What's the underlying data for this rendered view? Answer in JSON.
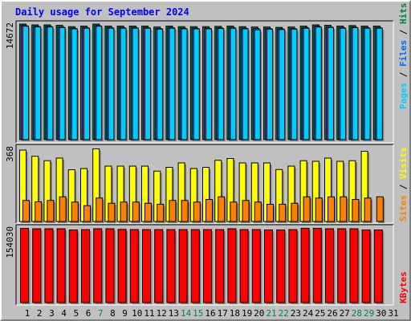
{
  "title": "Daily usage for September 2024",
  "right_labels": {
    "top": [
      {
        "text": "Pages",
        "color": "#00ccff"
      },
      {
        "text": " / ",
        "color": "#000000"
      },
      {
        "text": "Files",
        "color": "#0066ff"
      },
      {
        "text": " / ",
        "color": "#000000"
      },
      {
        "text": "Hits",
        "color": "#008040"
      }
    ],
    "middle": [
      {
        "text": "Sites",
        "color": "#ff8000"
      },
      {
        "text": " / ",
        "color": "#000000"
      },
      {
        "text": "Visits",
        "color": "#ffff00"
      }
    ],
    "bottom": [
      {
        "text": "KBytes",
        "color": "#ff0000"
      }
    ]
  },
  "chart_data": [
    {
      "type": "bar",
      "panel": "hits-files-pages",
      "categories": [
        "1",
        "2",
        "3",
        "4",
        "5",
        "6",
        "7",
        "8",
        "9",
        "10",
        "11",
        "12",
        "13",
        "14",
        "15",
        "16",
        "17",
        "18",
        "19",
        "20",
        "21",
        "22",
        "23",
        "24",
        "25",
        "26",
        "27",
        "28",
        "29",
        "30",
        "31"
      ],
      "weekend_days": [
        "7",
        "14",
        "15",
        "21",
        "22",
        "28",
        "29"
      ],
      "y_tick_label": "14672",
      "ylim": [
        0,
        14672
      ],
      "series": [
        {
          "name": "Hits",
          "color": "#008040",
          "values": [
            14672,
            14570,
            14570,
            14520,
            14340,
            14420,
            14672,
            14420,
            14420,
            14420,
            14420,
            14300,
            14420,
            14340,
            14340,
            14340,
            14380,
            14420,
            14340,
            14300,
            14300,
            14250,
            14300,
            14420,
            14570,
            14520,
            14420,
            14480,
            14420,
            14420,
            null
          ]
        },
        {
          "name": "Files",
          "color": "#0066ff",
          "values": [
            14480,
            14380,
            14380,
            14320,
            14150,
            14230,
            14480,
            14230,
            14230,
            14230,
            14230,
            14110,
            14230,
            14150,
            14150,
            14150,
            14190,
            14230,
            14150,
            14110,
            14110,
            14060,
            14110,
            14230,
            14380,
            14320,
            14230,
            14290,
            14230,
            14230,
            null
          ]
        },
        {
          "name": "Pages",
          "color": "#00ccff",
          "values": [
            14400,
            14300,
            14300,
            14240,
            14070,
            14150,
            14400,
            14150,
            14150,
            14150,
            14150,
            14030,
            14150,
            14070,
            14070,
            14070,
            14110,
            14150,
            14070,
            13930,
            14030,
            13980,
            14030,
            14150,
            14300,
            14240,
            14150,
            14210,
            14150,
            14150,
            null
          ]
        }
      ]
    },
    {
      "type": "bar",
      "panel": "visits-sites",
      "categories": [
        "1",
        "2",
        "3",
        "4",
        "5",
        "6",
        "7",
        "8",
        "9",
        "10",
        "11",
        "12",
        "13",
        "14",
        "15",
        "16",
        "17",
        "18",
        "19",
        "20",
        "21",
        "22",
        "23",
        "24",
        "25",
        "26",
        "27",
        "28",
        "29",
        "30",
        "31"
      ],
      "y_tick_label": "368",
      "ylim": [
        0,
        368
      ],
      "series": [
        {
          "name": "Visits",
          "color": "#ffff00",
          "values": [
            356,
            325,
            303,
            316,
            258,
            264,
            362,
            276,
            276,
            276,
            276,
            251,
            270,
            292,
            264,
            270,
            305,
            314,
            292,
            292,
            292,
            259,
            276,
            303,
            300,
            316,
            300,
            303,
            350,
            null,
            null
          ]
        },
        {
          "name": "Sites",
          "color": "#ff8000",
          "values": [
            105,
            98,
            105,
            123,
            97,
            79,
            117,
            91,
            97,
            97,
            91,
            86,
            105,
            105,
            97,
            110,
            123,
            97,
            105,
            97,
            86,
            86,
            91,
            123,
            117,
            123,
            123,
            110,
            117,
            123,
            null
          ]
        }
      ]
    },
    {
      "type": "bar",
      "panel": "kbytes",
      "categories": [
        "1",
        "2",
        "3",
        "4",
        "5",
        "6",
        "7",
        "8",
        "9",
        "10",
        "11",
        "12",
        "13",
        "14",
        "15",
        "16",
        "17",
        "18",
        "19",
        "20",
        "21",
        "22",
        "23",
        "24",
        "25",
        "26",
        "27",
        "28",
        "29",
        "30",
        "31"
      ],
      "y_tick_label": "154030",
      "ylim": [
        0,
        154030
      ],
      "series": [
        {
          "name": "KBytes",
          "color": "#ff0000",
          "values": [
            153000,
            152300,
            152300,
            152300,
            149900,
            150600,
            152300,
            152300,
            151000,
            150600,
            150600,
            150600,
            150600,
            150600,
            150600,
            150600,
            150600,
            152300,
            150600,
            150600,
            149900,
            149900,
            150600,
            153300,
            153300,
            152300,
            152300,
            152300,
            149900,
            149900,
            null
          ]
        }
      ]
    }
  ]
}
